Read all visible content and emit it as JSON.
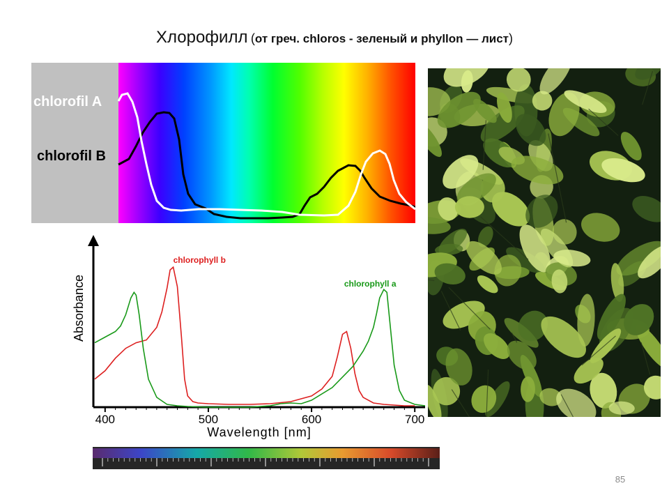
{
  "slide": {
    "title_main": "Хлорофилл",
    "title_open": "(",
    "title_paren": "от греч. chloros - зеленый и phyllon — лист",
    "title_close": ")",
    "page_number": "85"
  },
  "spectrum_panel": {
    "label_a": "chlorofil A",
    "label_b": "chlorofil B",
    "colors": {
      "panel_gray": "#c0c0c0",
      "curve_a": "#ffffff",
      "curve_b": "#000000"
    }
  },
  "chart_data": {
    "type": "line",
    "title": "",
    "xlabel": "Wavelength [nm]",
    "ylabel": "Absorbance",
    "xlim": [
      390,
      710
    ],
    "ylim": [
      0,
      1.1
    ],
    "xticks": [
      400,
      500,
      600,
      700
    ],
    "grid": false,
    "series": [
      {
        "name": "chlorophyll b",
        "color": "#dd1f1f",
        "label_x": 466,
        "label_y": 1.03,
        "x": [
          390,
          400,
          410,
          420,
          430,
          440,
          450,
          455,
          460,
          463,
          466,
          470,
          474,
          477,
          480,
          485,
          490,
          500,
          520,
          540,
          560,
          580,
          600,
          610,
          620,
          625,
          630,
          634,
          638,
          642,
          646,
          650,
          660,
          670,
          680,
          690,
          700
        ],
        "y": [
          0.2,
          0.26,
          0.35,
          0.42,
          0.46,
          0.48,
          0.57,
          0.68,
          0.85,
          0.98,
          1.0,
          0.86,
          0.5,
          0.2,
          0.08,
          0.04,
          0.03,
          0.025,
          0.02,
          0.02,
          0.025,
          0.04,
          0.08,
          0.13,
          0.22,
          0.36,
          0.52,
          0.54,
          0.42,
          0.24,
          0.12,
          0.07,
          0.03,
          0.02,
          0.015,
          0.01,
          0.01
        ]
      },
      {
        "name": "chlorophyll a",
        "color": "#189918",
        "label_x": 682,
        "label_y": 0.86,
        "x": [
          390,
          400,
          410,
          415,
          420,
          425,
          428,
          430,
          433,
          437,
          442,
          450,
          460,
          470,
          480,
          500,
          540,
          560,
          570,
          580,
          590,
          600,
          620,
          640,
          650,
          655,
          660,
          663,
          666,
          670,
          673,
          676,
          680,
          685,
          690,
          700,
          710
        ],
        "y": [
          0.46,
          0.5,
          0.54,
          0.58,
          0.66,
          0.78,
          0.82,
          0.8,
          0.66,
          0.42,
          0.2,
          0.07,
          0.02,
          0.01,
          0.005,
          0.0,
          0.0,
          0.01,
          0.025,
          0.03,
          0.025,
          0.05,
          0.14,
          0.29,
          0.4,
          0.47,
          0.57,
          0.67,
          0.78,
          0.84,
          0.82,
          0.6,
          0.3,
          0.12,
          0.05,
          0.02,
          0.01
        ]
      }
    ]
  },
  "wavelength_bar": {
    "colors": {
      "background": "#262626",
      "tick": "#d8d8d8"
    }
  },
  "photo": {
    "colors": {
      "background": "#132010",
      "leaf_light": "#c6dc74",
      "leaf_mid": "#8cae3c",
      "leaf_dark": "#3b5a20"
    }
  }
}
